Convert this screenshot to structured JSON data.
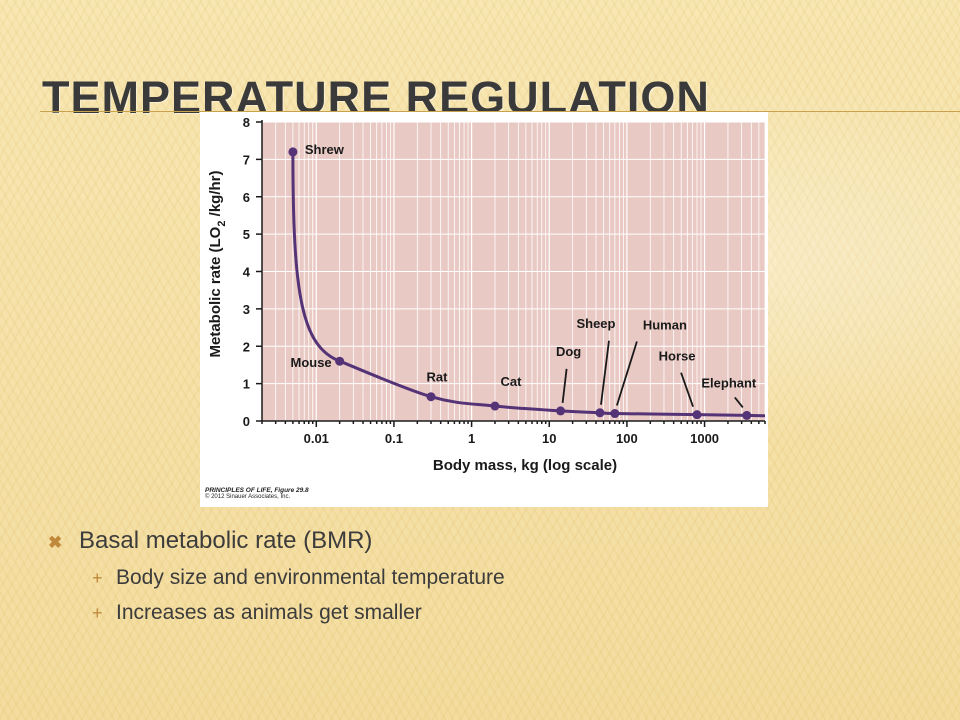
{
  "slide": {
    "title": "TEMPERATURE REGULATION",
    "bullets": [
      {
        "text": "Basal metabolic rate (BMR)",
        "sub": [
          "Body size and environmental temperature",
          "Increases as animals get smaller"
        ]
      }
    ],
    "bullet_marks": {
      "level1": "✖",
      "level2": "+"
    }
  },
  "figure_credit": {
    "title": "PRINCIPLES OF LIFE, Figure 29.8",
    "copyright": "© 2012 Sinauer Associates, Inc."
  },
  "chart_data": {
    "type": "line",
    "title": "",
    "xlabel": "Body mass, kg (log scale)",
    "ylabel_main": "Metabolic rate (LO",
    "ylabel_sub": "2",
    "ylabel_tail": " /kg/hr)",
    "x_scale": "log",
    "xlim": [
      0.002,
      6000
    ],
    "ylim": [
      0,
      8
    ],
    "x_ticks": [
      0.01,
      0.1,
      1,
      10,
      100,
      1000
    ],
    "x_tick_labels": [
      "0.01",
      "0.1",
      "1",
      "10",
      "100",
      "1000"
    ],
    "y_ticks": [
      0,
      1,
      2,
      3,
      4,
      5,
      6,
      7,
      8
    ],
    "y_tick_labels": [
      "0",
      "1",
      "2",
      "3",
      "4",
      "5",
      "6",
      "7",
      "8"
    ],
    "grid": true,
    "plot_background": "#e9c9c4",
    "grid_color": "#ffffff",
    "curve_color": "#553377",
    "points": [
      {
        "name": "Shrew",
        "x": 0.005,
        "y": 7.2
      },
      {
        "name": "Mouse",
        "x": 0.02,
        "y": 1.6
      },
      {
        "name": "Rat",
        "x": 0.3,
        "y": 0.65
      },
      {
        "name": "Cat",
        "x": 2,
        "y": 0.4
      },
      {
        "name": "Dog",
        "x": 14,
        "y": 0.27
      },
      {
        "name": "Sheep",
        "x": 45,
        "y": 0.22
      },
      {
        "name": "Human",
        "x": 70,
        "y": 0.2
      },
      {
        "name": "Horse",
        "x": 800,
        "y": 0.17
      },
      {
        "name": "Elephant",
        "x": 3500,
        "y": 0.15
      }
    ],
    "curve_end": {
      "x": 6000,
      "y": 0.14
    }
  }
}
